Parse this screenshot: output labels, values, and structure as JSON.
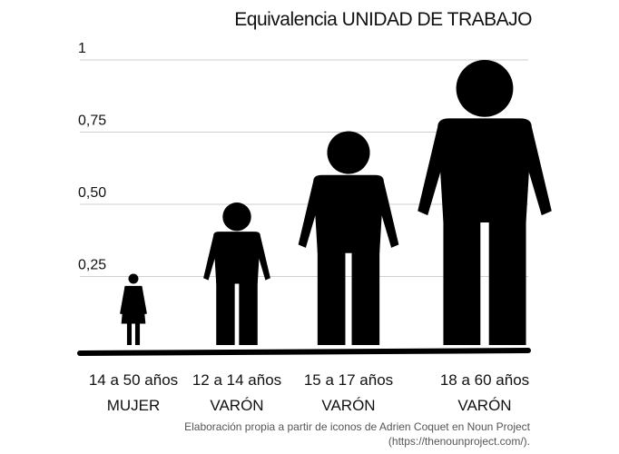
{
  "chart_data": {
    "type": "bar",
    "title": "Equivalencia UNIDAD DE TRABAJO",
    "xlabel": "",
    "ylabel": "",
    "ylim": [
      0,
      1
    ],
    "grid": true,
    "y_ticks": [
      {
        "value": 0.25,
        "label": "0,25"
      },
      {
        "value": 0.5,
        "label": "0,50"
      },
      {
        "value": 0.75,
        "label": "0,75"
      },
      {
        "value": 1,
        "label": "1"
      }
    ],
    "categories": [
      {
        "line1": "14 a 50 años",
        "line2": "MUJER"
      },
      {
        "line1": "12 a 14 años",
        "line2": "VARÓN"
      },
      {
        "line1": "15 a 17 años",
        "line2": "VARÓN"
      },
      {
        "line1": "18 a 60 años",
        "line2": "VARÓN"
      }
    ],
    "values": [
      0.25,
      0.5,
      0.75,
      1
    ],
    "marks": [
      "woman-icon",
      "man-icon",
      "man-icon",
      "man-icon"
    ],
    "mark_color": "#000000"
  },
  "credit": {
    "line1": "Elaboración propia a partir de iconos de Adrien Coquet en Noun Project",
    "line2": "(https://thenounproject.com/)."
  }
}
